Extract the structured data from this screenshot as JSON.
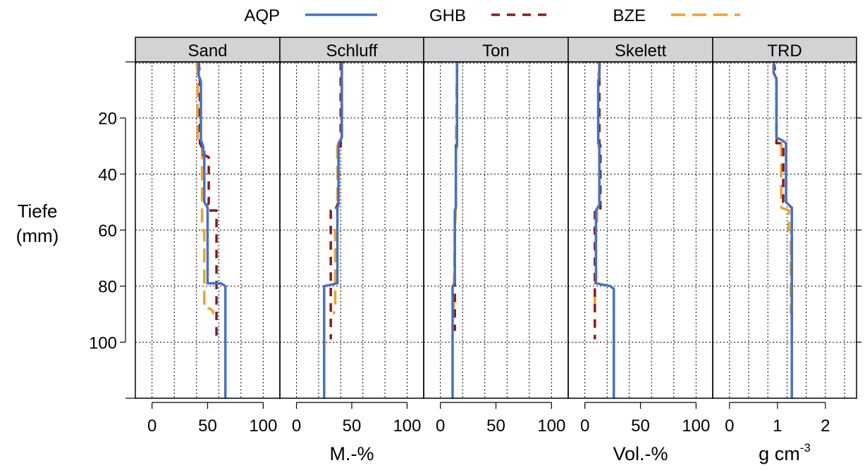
{
  "chart_data": {
    "type": "line",
    "legend": {
      "placement": "top",
      "entries": [
        {
          "name": "AQP",
          "color": "#4472C4",
          "dash": "solid"
        },
        {
          "name": "GHB",
          "color": "#8B1A1A",
          "dash": "dashed"
        },
        {
          "name": "BZE",
          "color": "#F0A030",
          "dash": "longdash"
        }
      ]
    },
    "y_axis": {
      "label_line1": "Tiefe",
      "label_line2": "(mm)",
      "range": [
        0,
        120
      ],
      "reversed": true,
      "ticks": [
        20,
        40,
        60,
        80,
        100
      ]
    },
    "grid": true,
    "strip_color": "#D3D3D3",
    "panels": [
      {
        "name": "Sand",
        "xlim": [
          -15,
          115
        ],
        "ticks": [
          0,
          50,
          100
        ],
        "tick_labels": [
          "0",
          "50",
          "100"
        ],
        "series": {
          "AQP": [
            [
              42,
              0
            ],
            [
              42,
              5
            ],
            [
              44,
              7
            ],
            [
              44,
              28
            ],
            [
              46,
              30
            ],
            [
              46,
              32
            ],
            [
              47,
              32
            ],
            [
              47,
              50
            ],
            [
              50,
              52
            ],
            [
              50,
              79
            ],
            [
              62,
              79
            ],
            [
              66,
              80
            ],
            [
              66,
              120
            ]
          ],
          "GHB": [
            [
              42,
              0
            ],
            [
              43,
              5
            ],
            [
              43,
              29
            ],
            [
              46,
              31
            ],
            [
              46,
              33
            ],
            [
              51,
              34
            ],
            [
              51,
              50
            ],
            [
              50,
              52
            ],
            [
              50,
              53
            ],
            [
              58,
              53
            ],
            [
              58,
              100
            ]
          ],
          "BZE": [
            [
              40,
              0
            ],
            [
              41,
              3
            ],
            [
              41,
              28
            ],
            [
              44,
              30
            ],
            [
              45,
              31
            ],
            [
              45,
              60
            ],
            [
              47,
              60
            ],
            [
              47,
              88
            ],
            [
              52,
              88
            ],
            [
              55,
              89
            ],
            [
              55,
              90
            ]
          ]
        }
      },
      {
        "name": "Schluff",
        "xlim": [
          -15,
          115
        ],
        "ticks": [
          0,
          50,
          100
        ],
        "tick_labels": [
          "0",
          "50",
          "100"
        ],
        "series": {
          "AQP": [
            [
              41,
              0
            ],
            [
              41,
              27
            ],
            [
              38,
              29
            ],
            [
              38,
              51
            ],
            [
              37,
              52
            ],
            [
              37,
              79
            ],
            [
              25,
              80
            ],
            [
              25,
              120
            ]
          ],
          "GHB": [
            [
              40,
              0
            ],
            [
              40,
              30
            ],
            [
              38,
              32
            ],
            [
              38,
              50
            ],
            [
              36,
              52
            ],
            [
              36,
              53
            ],
            [
              31,
              53
            ],
            [
              31,
              99
            ]
          ],
          "BZE": [
            [
              41,
              0
            ],
            [
              41,
              27
            ],
            [
              37,
              29
            ],
            [
              37,
              60
            ],
            [
              35,
              60
            ],
            [
              35,
              88
            ],
            [
              34,
              89
            ],
            [
              34,
              90
            ]
          ]
        }
      },
      {
        "name": "Ton",
        "xlim": [
          -15,
          115
        ],
        "ticks": [
          0,
          50,
          100
        ],
        "tick_labels": [
          "0",
          "50",
          "100"
        ],
        "series": {
          "AQP": [
            [
              15,
              0
            ],
            [
              15,
              30
            ],
            [
              14,
              31
            ],
            [
              14,
              52
            ],
            [
              13,
              53
            ],
            [
              13,
              79
            ],
            [
              11,
              80
            ],
            [
              11,
              120
            ]
          ],
          "GHB": [
            [
              15,
              0
            ],
            [
              15,
              29
            ],
            [
              14,
              30
            ],
            [
              14,
              52
            ],
            [
              13,
              53
            ],
            [
              13,
              96
            ]
          ],
          "BZE": [
            [
              15,
              0
            ],
            [
              14,
              30
            ],
            [
              14,
              52
            ],
            [
              13,
              60
            ],
            [
              12,
              88
            ],
            [
              12,
              90
            ]
          ]
        }
      },
      {
        "name": "Skelett",
        "xlim": [
          -15,
          115
        ],
        "ticks": [
          0,
          50,
          100
        ],
        "tick_labels": [
          "0",
          "50",
          "100"
        ],
        "series": {
          "AQP": [
            [
              13,
              0
            ],
            [
              13,
              5
            ],
            [
              12,
              7
            ],
            [
              12,
              29
            ],
            [
              13,
              30
            ],
            [
              13,
              51
            ],
            [
              10,
              53
            ],
            [
              10,
              79
            ],
            [
              23,
              80
            ],
            [
              26,
              81
            ],
            [
              26,
              120
            ]
          ],
          "GHB": [
            [
              13,
              0
            ],
            [
              13,
              29
            ],
            [
              14,
              30
            ],
            [
              14,
              53
            ],
            [
              9,
              53
            ],
            [
              9,
              99
            ]
          ],
          "BZE": [
            [
              14,
              0
            ],
            [
              12,
              5
            ],
            [
              12,
              30
            ],
            [
              13,
              31
            ],
            [
              13,
              50
            ],
            [
              11,
              51
            ],
            [
              11,
              60
            ],
            [
              10,
              60
            ],
            [
              10,
              78
            ],
            [
              9,
              79
            ],
            [
              9,
              88
            ]
          ]
        }
      },
      {
        "name": "TRD",
        "xlim": [
          -0.35,
          2.65
        ],
        "ticks": [
          0,
          1,
          2
        ],
        "tick_labels": [
          "0",
          "1",
          "2"
        ],
        "series": {
          "AQP": [
            [
              0.92,
              0
            ],
            [
              0.92,
              4
            ],
            [
              0.98,
              6
            ],
            [
              0.98,
              27
            ],
            [
              1.1,
              28
            ],
            [
              1.18,
              29
            ],
            [
              1.18,
              50
            ],
            [
              1.3,
              52
            ],
            [
              1.3,
              120
            ]
          ],
          "GHB": [
            [
              0.92,
              0
            ],
            [
              0.98,
              6
            ],
            [
              0.98,
              29
            ],
            [
              1.12,
              29
            ],
            [
              1.12,
              50
            ],
            [
              1.3,
              52
            ],
            [
              1.3,
              100
            ]
          ],
          "BZE": [
            [
              0.92,
              0
            ],
            [
              0.92,
              4
            ],
            [
              0.98,
              5
            ],
            [
              0.98,
              28
            ],
            [
              1.08,
              29
            ],
            [
              1.08,
              52
            ],
            [
              1.24,
              53
            ],
            [
              1.24,
              60
            ],
            [
              1.28,
              60
            ],
            [
              1.28,
              90
            ]
          ]
        }
      }
    ],
    "x_unit_labels": [
      {
        "text": "M.-%",
        "under_panel": 1,
        "sup": ""
      },
      {
        "text": "Vol.-%",
        "under_panel": 3,
        "sup": ""
      },
      {
        "text": "g cm",
        "under_panel": 4,
        "sup": "-3"
      }
    ]
  }
}
